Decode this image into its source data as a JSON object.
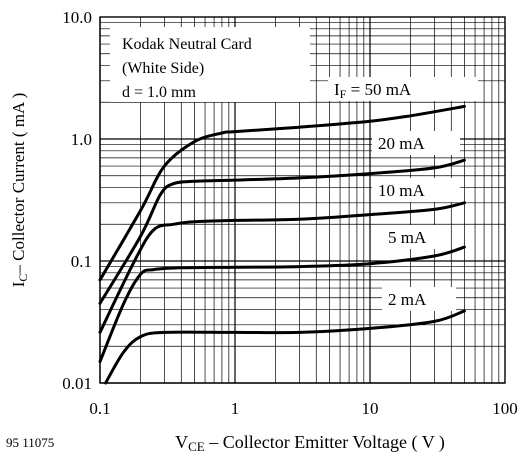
{
  "chart_data": {
    "type": "line",
    "x_scale": "log",
    "y_scale": "log",
    "xlim": [
      0.1,
      100
    ],
    "ylim": [
      0.01,
      10
    ],
    "x_ticks": [
      {
        "value": 0.1,
        "label": "0.1"
      },
      {
        "value": 1,
        "label": "1"
      },
      {
        "value": 10,
        "label": "10"
      },
      {
        "value": 100,
        "label": "100"
      }
    ],
    "y_ticks": [
      {
        "value": 0.01,
        "label": "0.01"
      },
      {
        "value": 0.1,
        "label": "0.1"
      },
      {
        "value": 1,
        "label": "1.0"
      },
      {
        "value": 10,
        "label": "10.0"
      }
    ],
    "grid": true,
    "xlabel": {
      "main": "V",
      "sub": "CE",
      "rest": " – Collector Emitter Voltage ( V )"
    },
    "ylabel": {
      "main": "I",
      "sub": "C",
      "rest": "– Collector Current ( mA )"
    },
    "figure_code": "95 11075",
    "conditions": [
      "Kodak Neutral Card",
      "(White Side)",
      "d = 1.0 mm"
    ],
    "series": [
      {
        "name": "50 mA",
        "label": {
          "main": "I",
          "sub": "F",
          "rest": " = 50 mA"
        },
        "points": [
          [
            0.1,
            0.07
          ],
          [
            0.2,
            0.26
          ],
          [
            0.3,
            0.6
          ],
          [
            0.5,
            0.95
          ],
          [
            0.8,
            1.12
          ],
          [
            1,
            1.15
          ],
          [
            3,
            1.25
          ],
          [
            10,
            1.4
          ],
          [
            20,
            1.55
          ],
          [
            50,
            1.85
          ]
        ]
      },
      {
        "name": "20 mA",
        "label": {
          "main": "",
          "sub": "",
          "rest": "20 mA"
        },
        "points": [
          [
            0.1,
            0.045
          ],
          [
            0.2,
            0.16
          ],
          [
            0.28,
            0.35
          ],
          [
            0.35,
            0.43
          ],
          [
            0.5,
            0.45
          ],
          [
            1,
            0.46
          ],
          [
            3,
            0.48
          ],
          [
            10,
            0.52
          ],
          [
            30,
            0.58
          ],
          [
            50,
            0.67
          ]
        ]
      },
      {
        "name": "10 mA",
        "label": {
          "main": "",
          "sub": "",
          "rest": "10 mA"
        },
        "points": [
          [
            0.1,
            0.026
          ],
          [
            0.18,
            0.1
          ],
          [
            0.25,
            0.18
          ],
          [
            0.35,
            0.2
          ],
          [
            0.5,
            0.21
          ],
          [
            1,
            0.215
          ],
          [
            3,
            0.22
          ],
          [
            10,
            0.24
          ],
          [
            30,
            0.265
          ],
          [
            50,
            0.3
          ]
        ]
      },
      {
        "name": "5 mA",
        "label": {
          "main": "",
          "sub": "",
          "rest": "5 mA"
        },
        "points": [
          [
            0.1,
            0.015
          ],
          [
            0.15,
            0.045
          ],
          [
            0.2,
            0.078
          ],
          [
            0.25,
            0.085
          ],
          [
            0.4,
            0.088
          ],
          [
            1,
            0.089
          ],
          [
            3,
            0.09
          ],
          [
            10,
            0.095
          ],
          [
            30,
            0.11
          ],
          [
            50,
            0.13
          ]
        ]
      },
      {
        "name": "2 mA",
        "label": {
          "main": "",
          "sub": "",
          "rest": "2 mA"
        },
        "points": [
          [
            0.11,
            0.01
          ],
          [
            0.15,
            0.018
          ],
          [
            0.2,
            0.024
          ],
          [
            0.3,
            0.026
          ],
          [
            1,
            0.026
          ],
          [
            3,
            0.026
          ],
          [
            10,
            0.028
          ],
          [
            30,
            0.032
          ],
          [
            50,
            0.039
          ]
        ]
      }
    ]
  }
}
